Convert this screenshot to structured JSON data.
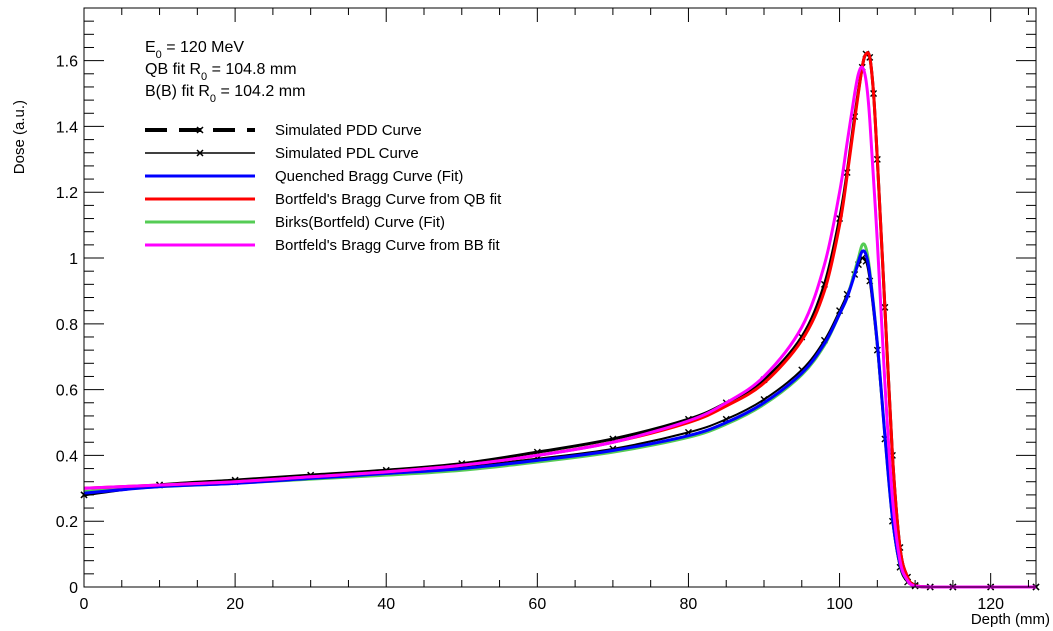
{
  "chart_data": {
    "type": "line",
    "xlabel": "Depth (mm)",
    "ylabel": "Dose (a.u.)",
    "xlim": [
      0,
      126
    ],
    "ylim": [
      0,
      1.76
    ],
    "xticks": [
      "0",
      "20",
      "40",
      "60",
      "80",
      "100",
      "120"
    ],
    "yticks": [
      "0",
      "0.2",
      "0.4",
      "0.6",
      "0.8",
      "1",
      "1.2",
      "1.4",
      "1.6"
    ],
    "grid": false,
    "legend_position": "top-left",
    "annotations": {
      "line1_main": "E",
      "line1_sub": "0",
      "line1_rest": " = 120 MeV",
      "line2_main": "QB fit R",
      "line2_sub": "0",
      "line2_rest": " = 104.8 mm",
      "line3_main": "B(B) fit R",
      "line3_sub": "0",
      "line3_rest": " = 104.2 mm"
    },
    "series": [
      {
        "name": "Simulated PDD Curve",
        "color": "#000000",
        "style": "dashed-markers",
        "x": [
          0,
          10,
          20,
          30,
          40,
          50,
          60,
          70,
          80,
          85,
          90,
          95,
          98,
          100,
          101,
          102,
          103,
          103.5,
          104,
          104.5,
          105,
          106,
          107,
          108,
          109,
          110,
          112,
          115,
          120,
          126
        ],
        "y": [
          0.28,
          0.31,
          0.325,
          0.34,
          0.355,
          0.375,
          0.41,
          0.45,
          0.51,
          0.56,
          0.63,
          0.76,
          0.92,
          1.12,
          1.26,
          1.43,
          1.58,
          1.62,
          1.61,
          1.5,
          1.3,
          0.85,
          0.4,
          0.12,
          0.03,
          0.005,
          0,
          0,
          0,
          0
        ]
      },
      {
        "name": "Simulated PDL Curve",
        "color": "#000000",
        "style": "solid-markers",
        "x": [
          0,
          10,
          20,
          30,
          40,
          50,
          60,
          70,
          80,
          85,
          90,
          95,
          98,
          100,
          101,
          102,
          102.5,
          103,
          103.5,
          104,
          105,
          106,
          107,
          108,
          109,
          110,
          112,
          115,
          120,
          126
        ],
        "y": [
          0.28,
          0.31,
          0.32,
          0.335,
          0.35,
          0.365,
          0.39,
          0.42,
          0.47,
          0.51,
          0.57,
          0.66,
          0.75,
          0.84,
          0.89,
          0.95,
          0.98,
          1.0,
          0.99,
          0.93,
          0.72,
          0.45,
          0.2,
          0.06,
          0.015,
          0.003,
          0,
          0,
          0,
          0
        ]
      },
      {
        "name": "Quenched Bragg Curve (Fit)",
        "color": "#0000ff",
        "style": "solid",
        "x": [
          0,
          10,
          20,
          30,
          40,
          50,
          60,
          70,
          80,
          85,
          90,
          95,
          98,
          100,
          101,
          102,
          102.5,
          103,
          103.5,
          104,
          105,
          106,
          107,
          108,
          109,
          110,
          112,
          115,
          120,
          126
        ],
        "y": [
          0.285,
          0.305,
          0.315,
          0.33,
          0.345,
          0.36,
          0.385,
          0.415,
          0.46,
          0.5,
          0.56,
          0.65,
          0.74,
          0.83,
          0.88,
          0.95,
          0.99,
          1.02,
          1.01,
          0.95,
          0.74,
          0.46,
          0.21,
          0.07,
          0.02,
          0.004,
          0,
          0,
          0,
          0
        ]
      },
      {
        "name": "Bortfeld's Bragg Curve  from QB fit",
        "color": "#ff0000",
        "style": "solid",
        "x": [
          0,
          10,
          20,
          30,
          40,
          50,
          60,
          70,
          80,
          85,
          90,
          95,
          98,
          100,
          101,
          102,
          103,
          103.5,
          104,
          104.5,
          105,
          106,
          107,
          108,
          109,
          110,
          112,
          115,
          120,
          126
        ],
        "y": [
          0.3,
          0.31,
          0.32,
          0.335,
          0.35,
          0.37,
          0.4,
          0.44,
          0.5,
          0.55,
          0.62,
          0.75,
          0.9,
          1.1,
          1.25,
          1.42,
          1.58,
          1.62,
          1.61,
          1.5,
          1.3,
          0.85,
          0.4,
          0.12,
          0.03,
          0.005,
          0,
          0,
          0,
          0
        ]
      },
      {
        "name": "Birks(Bortfeld) Curve (Fit)",
        "color": "#55cc55",
        "style": "solid",
        "x": [
          0,
          10,
          20,
          30,
          40,
          50,
          60,
          70,
          80,
          85,
          90,
          95,
          98,
          100,
          101,
          102,
          102.5,
          103,
          103.5,
          104,
          105,
          106,
          107,
          108,
          109,
          110,
          112,
          115,
          120,
          126
        ],
        "y": [
          0.29,
          0.305,
          0.315,
          0.328,
          0.34,
          0.355,
          0.38,
          0.41,
          0.455,
          0.495,
          0.555,
          0.645,
          0.735,
          0.83,
          0.88,
          0.96,
          1.0,
          1.04,
          1.03,
          0.96,
          0.74,
          0.46,
          0.21,
          0.07,
          0.02,
          0.004,
          0,
          0,
          0,
          0
        ]
      },
      {
        "name": "Bortfeld's Bragg Curve  from BB fit",
        "color": "#ff00ff",
        "style": "solid",
        "x": [
          0,
          10,
          20,
          30,
          40,
          50,
          60,
          70,
          80,
          85,
          90,
          95,
          98,
          100,
          101,
          102,
          102.5,
          103,
          103.5,
          104,
          105,
          106,
          107,
          108,
          109,
          110,
          112,
          115,
          120,
          126
        ],
        "y": [
          0.3,
          0.31,
          0.32,
          0.335,
          0.35,
          0.37,
          0.4,
          0.44,
          0.505,
          0.56,
          0.64,
          0.79,
          0.98,
          1.2,
          1.35,
          1.5,
          1.56,
          1.58,
          1.54,
          1.42,
          1.05,
          0.62,
          0.27,
          0.08,
          0.02,
          0.003,
          0,
          0,
          0,
          0
        ]
      }
    ]
  }
}
